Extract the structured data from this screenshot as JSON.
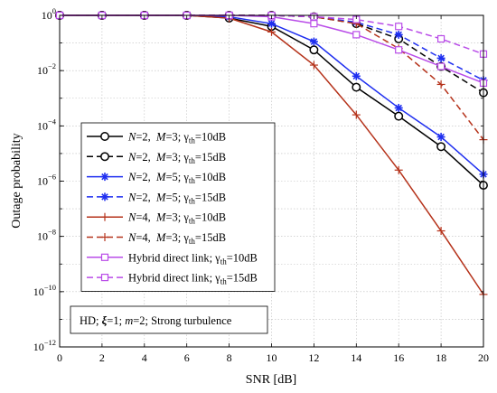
{
  "chart_data": {
    "type": "line",
    "xlabel": "SNR [dB]",
    "ylabel": "Outage probability",
    "xlim": [
      0,
      20
    ],
    "ylim_log10": [
      -12,
      0
    ],
    "yscale": "log",
    "grid": true,
    "legend_placement": "left",
    "x_ticks": [
      0,
      2,
      4,
      6,
      8,
      10,
      12,
      14,
      16,
      18,
      20
    ],
    "y_ticks": [
      {
        "exp": 0,
        "base": "10",
        "sup": "0"
      },
      {
        "exp": -2,
        "base": "10",
        "sup": "−2"
      },
      {
        "exp": -4,
        "base": "10",
        "sup": "−4"
      },
      {
        "exp": -6,
        "base": "10",
        "sup": "−6"
      },
      {
        "exp": -8,
        "base": "10",
        "sup": "−8"
      },
      {
        "exp": -10,
        "base": "10",
        "sup": "−10"
      },
      {
        "exp": -12,
        "base": "10",
        "sup": "−12"
      }
    ],
    "annotation": "HD; ξ=1; m=2; Strong turbulence",
    "series": [
      {
        "name": "N=2, M=3; γth=10dB",
        "color": "#000000",
        "dash": "solid",
        "marker": "circle",
        "x": [
          0,
          2,
          4,
          6,
          8,
          10,
          12,
          14,
          16,
          18,
          20
        ],
        "log10_y": [
          0,
          0,
          0,
          0,
          -0.1,
          -0.4,
          -1.25,
          -2.6,
          -3.65,
          -4.75,
          -6.15
        ]
      },
      {
        "name": "N=2, M=3; γth=15dB",
        "color": "#000000",
        "dash": "dashed",
        "marker": "circle",
        "x": [
          0,
          2,
          4,
          6,
          8,
          10,
          12,
          14,
          16,
          18,
          20
        ],
        "log10_y": [
          0,
          0,
          0,
          0,
          0,
          0,
          -0.05,
          -0.3,
          -0.85,
          -1.85,
          -2.8
        ]
      },
      {
        "name": "N=2, M=5; γth=10dB",
        "color": "#1f2ff0",
        "dash": "solid",
        "marker": "star",
        "x": [
          0,
          2,
          4,
          6,
          8,
          10,
          12,
          14,
          16,
          18,
          20
        ],
        "log10_y": [
          0,
          0,
          0,
          0,
          -0.05,
          -0.3,
          -0.95,
          -2.2,
          -3.35,
          -4.4,
          -5.75
        ]
      },
      {
        "name": "N=2, M=5; γth=15dB",
        "color": "#1f2ff0",
        "dash": "dashed",
        "marker": "star",
        "x": [
          0,
          2,
          4,
          6,
          8,
          10,
          12,
          14,
          16,
          18,
          20
        ],
        "log10_y": [
          0,
          0,
          0,
          0,
          0,
          0,
          -0.05,
          -0.25,
          -0.7,
          -1.55,
          -2.35
        ]
      },
      {
        "name": "N=4, M=3; γth=10dB",
        "color": "#b5321a",
        "dash": "solid",
        "marker": "plus",
        "x": [
          0,
          2,
          4,
          6,
          8,
          10,
          12,
          14,
          16,
          18,
          20
        ],
        "log10_y": [
          0,
          0,
          0,
          0,
          -0.1,
          -0.6,
          -1.8,
          -3.6,
          -5.6,
          -7.8,
          -10.1
        ]
      },
      {
        "name": "N=4, M=3; γth=15dB",
        "color": "#b5321a",
        "dash": "dashed",
        "marker": "plus",
        "x": [
          0,
          2,
          4,
          6,
          8,
          10,
          12,
          14,
          16,
          18,
          20
        ],
        "log10_y": [
          0,
          0,
          0,
          0,
          0,
          0,
          -0.05,
          -0.3,
          -1.2,
          -2.5,
          -4.5
        ]
      },
      {
        "name": "Hybrid direct link; γth=10dB",
        "color": "#b94ce8",
        "dash": "solid",
        "marker": "square",
        "x": [
          0,
          2,
          4,
          6,
          8,
          10,
          12,
          14,
          16,
          18,
          20
        ],
        "log10_y": [
          0,
          0,
          0,
          0,
          0,
          -0.05,
          -0.3,
          -0.7,
          -1.25,
          -1.85,
          -2.45
        ]
      },
      {
        "name": "Hybrid direct link; γth=15dB",
        "color": "#b94ce8",
        "dash": "dashed",
        "marker": "square",
        "x": [
          0,
          2,
          4,
          6,
          8,
          10,
          12,
          14,
          16,
          18,
          20
        ],
        "log10_y": [
          0,
          0,
          0,
          0,
          0,
          0,
          -0.05,
          -0.15,
          -0.4,
          -0.85,
          -1.4
        ]
      }
    ]
  },
  "legend": [
    {
      "n": "N",
      "nv": "=2,",
      "m": "M",
      "mv": "=3;",
      "g": "γ",
      "gs": "th",
      "gv": "=10dB"
    },
    {
      "n": "N",
      "nv": "=2,",
      "m": "M",
      "mv": "=3;",
      "g": "γ",
      "gs": "th",
      "gv": "=15dB"
    },
    {
      "n": "N",
      "nv": "=2,",
      "m": "M",
      "mv": "=5;",
      "g": "γ",
      "gs": "th",
      "gv": "=10dB"
    },
    {
      "n": "N",
      "nv": "=2,",
      "m": "M",
      "mv": "=5;",
      "g": "γ",
      "gs": "th",
      "gv": "=15dB"
    },
    {
      "n": "N",
      "nv": "=4,",
      "m": "M",
      "mv": "=3;",
      "g": "γ",
      "gs": "th",
      "gv": "=10dB"
    },
    {
      "n": "N",
      "nv": "=4,",
      "m": "M",
      "mv": "=3;",
      "g": "γ",
      "gs": "th",
      "gv": "=15dB"
    },
    {
      "pre": "Hybrid direct link; ",
      "g": "γ",
      "gs": "th",
      "gv": "=10dB"
    },
    {
      "pre": "Hybrid direct link; ",
      "g": "γ",
      "gs": "th",
      "gv": "=15dB"
    }
  ],
  "annotation_parts": {
    "a": "HD; ",
    "xi": "ξ",
    "b": "=1; ",
    "m": "m",
    "c": "=2; Strong turbulence"
  }
}
